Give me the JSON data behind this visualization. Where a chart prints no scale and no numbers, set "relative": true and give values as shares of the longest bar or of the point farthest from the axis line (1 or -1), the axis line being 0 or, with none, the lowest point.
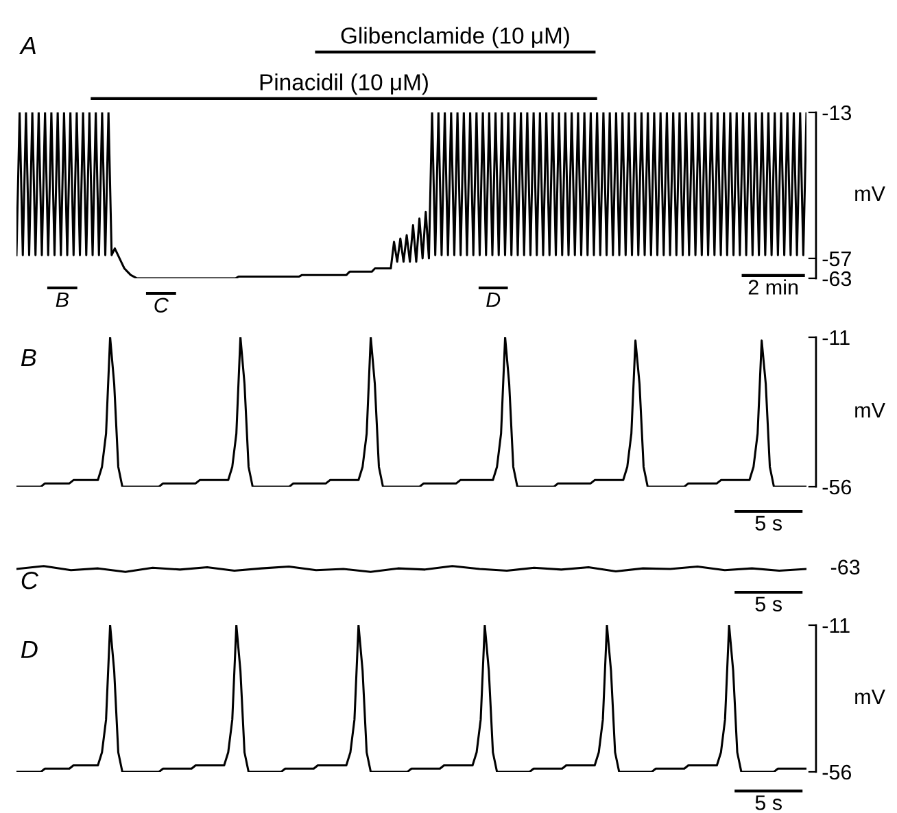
{
  "chart_data": [
    {
      "type": "line",
      "title": "A",
      "ylabel": "mV",
      "ylim": [
        -63,
        -13
      ],
      "yticks": [
        -13,
        -57,
        -63
      ],
      "tick_labels": "y",
      "grid": false,
      "categories": [
        null,
        null,
        null,
        null,
        null,
        null,
        null,
        null,
        null,
        null,
        null,
        null,
        null,
        null,
        null,
        null,
        null,
        null,
        null,
        null,
        null,
        null,
        null,
        null,
        null,
        null,
        null,
        null,
        null,
        null,
        null,
        null,
        null,
        null,
        null,
        null,
        null,
        null,
        null,
        null,
        null,
        null,
        null,
        null,
        null,
        null,
        null,
        null,
        null,
        null,
        null,
        null,
        null,
        null,
        null,
        null,
        null,
        null,
        null,
        null,
        null,
        null,
        null,
        null,
        null,
        null,
        null,
        null,
        null,
        null,
        null,
        null,
        null,
        null,
        null,
        null,
        null,
        null,
        null,
        null,
        null,
        null,
        null,
        null,
        null,
        null,
        null,
        null,
        null,
        null,
        null,
        null,
        null,
        null,
        null,
        null,
        null,
        null,
        null,
        null,
        null,
        null,
        null,
        null,
        null,
        null,
        null,
        null,
        null,
        null,
        null,
        null,
        null,
        null,
        null,
        null,
        null,
        null,
        null,
        null,
        null,
        null,
        null,
        null,
        null,
        null,
        null,
        null,
        null,
        null,
        null,
        null,
        null,
        null,
        null,
        null,
        null,
        null,
        null,
        null,
        null,
        null,
        null,
        null,
        null,
        null,
        null,
        null,
        null,
        null,
        null,
        null,
        null,
        null,
        null,
        null,
        null,
        null,
        null,
        null,
        null,
        null,
        null,
        null,
        null,
        null,
        null,
        null,
        null,
        null,
        null,
        null,
        null,
        null,
        null,
        null,
        null,
        null,
        null,
        null,
        null,
        null,
        null,
        null,
        null,
        null,
        null,
        null,
        null,
        null,
        null,
        null,
        null,
        null,
        null,
        null,
        null,
        null,
        null,
        null,
        null,
        null,
        null,
        null,
        null,
        null,
        null,
        null,
        null,
        null,
        null,
        null,
        null,
        null,
        null,
        null,
        null,
        null,
        null,
        null,
        null,
        null,
        null,
        null,
        null,
        null,
        null,
        null,
        null,
        null,
        null,
        null,
        null,
        null,
        null,
        null,
        null,
        null,
        null,
        null,
        null,
        null,
        null,
        null,
        null,
        null,
        null,
        null,
        null,
        null
      ],
      "series": [
        {
          "color": "#000000",
          "values": [
            -56,
            -13,
            -56,
            -13,
            -56,
            -13,
            -56,
            -13,
            -56,
            -13,
            -56,
            -13,
            -56,
            -13,
            -56,
            -13,
            -56,
            -13,
            -56,
            -13,
            -56,
            -13,
            -56,
            -13,
            -56,
            -13,
            -56,
            -13,
            -56,
            -13,
            -56,
            -54,
            -56,
            -58,
            -60,
            -61,
            -62,
            -62.5,
            -63,
            -63,
            -63,
            -63,
            -63,
            -63,
            -63,
            -63,
            -63,
            -63,
            -63,
            -63,
            -63,
            -63,
            -63,
            -63,
            -63,
            -63,
            -63,
            -63,
            -63,
            -63,
            -63,
            -63,
            -63,
            -63,
            -63,
            -63,
            -63,
            -63,
            -63,
            -63,
            -62.5,
            -62.5,
            -62.5,
            -62.5,
            -62.5,
            -62.5,
            -62.5,
            -62.5,
            -62.5,
            -62.5,
            -62.5,
            -62.5,
            -62.5,
            -62.5,
            -62.5,
            -62.5,
            -62.5,
            -62.5,
            -62.5,
            -62.5,
            -62,
            -62,
            -62,
            -62,
            -62,
            -62,
            -62,
            -62,
            -62,
            -62,
            -62,
            -62,
            -62,
            -62,
            -62,
            -61,
            -61,
            -61,
            -61,
            -61,
            -61,
            -61,
            -61,
            -60,
            -60,
            -60,
            -60,
            -60,
            -60,
            -52,
            -58,
            -51,
            -58,
            -50,
            -58,
            -47,
            -58,
            -45,
            -57,
            -43,
            -57,
            -13,
            -56,
            -13,
            -56,
            -13,
            -56,
            -13,
            -56,
            -13,
            -56,
            -13,
            -56,
            -13,
            -56,
            -13,
            -56,
            -13,
            -56,
            -13,
            -56,
            -13,
            -56,
            -13,
            -56,
            -13,
            -56,
            -13,
            -56,
            -13,
            -56,
            -13,
            -56,
            -13,
            -56,
            -13,
            -56,
            -13,
            -56,
            -13,
            -56,
            -13,
            -56,
            -13,
            -56,
            -13,
            -56,
            -13,
            -56,
            -13,
            -56,
            -13,
            -56,
            -13,
            -56,
            -13,
            -56,
            -13,
            -56,
            -13,
            -56,
            -13,
            -56,
            -13,
            -56,
            -13,
            -56,
            -13,
            -56,
            -13,
            -56,
            -13,
            -56,
            -13,
            -56,
            -13,
            -56,
            -13,
            -56,
            -13,
            -56,
            -13,
            -56,
            -13,
            -56,
            -13,
            -56,
            -13,
            -56,
            -13,
            -56,
            -13,
            -56,
            -13,
            -56,
            -13,
            -56,
            -13,
            -56,
            -13,
            -56,
            -13,
            -56,
            -13,
            -56,
            -13,
            -56,
            -13,
            -56,
            -13,
            -56,
            -13,
            -56,
            -13,
            -56,
            -13,
            -56,
            -13,
            -56,
            -13
          ]
        }
      ],
      "annotations": [
        "Glibenclamide (10 μM)",
        "Pinacidil (10 μM)",
        "B",
        "C",
        "D",
        "2 min"
      ]
    },
    {
      "type": "line",
      "title": "B",
      "ylabel": "mV",
      "ylim": [
        -56,
        -11
      ],
      "yticks": [
        -11,
        -56
      ],
      "tick_labels": "y",
      "grid": false,
      "categories": [
        null,
        null,
        null,
        null,
        null,
        null,
        null,
        null,
        null,
        null,
        null,
        null,
        null,
        null,
        null,
        null,
        null,
        null,
        null,
        null,
        null,
        null,
        null,
        null,
        null,
        null,
        null,
        null,
        null,
        null,
        null,
        null,
        null,
        null,
        null,
        null,
        null,
        null,
        null,
        null,
        null,
        null,
        null,
        null,
        null,
        null,
        null,
        null,
        null,
        null,
        null,
        null,
        null,
        null,
        null,
        null,
        null,
        null,
        null,
        null,
        null,
        null,
        null,
        null,
        null,
        null,
        null,
        null,
        null,
        null,
        null,
        null,
        null,
        null,
        null,
        null,
        null,
        null,
        null,
        null,
        null,
        null,
        null,
        null,
        null,
        null,
        null,
        null,
        null,
        null,
        null,
        null,
        null,
        null,
        null,
        null,
        null,
        null,
        null,
        null,
        null,
        null,
        null,
        null,
        null,
        null,
        null,
        null,
        null,
        null,
        null,
        null,
        null,
        null,
        null,
        null,
        null,
        null,
        null,
        null,
        null,
        null,
        null,
        null,
        null,
        null,
        null,
        null,
        null,
        null,
        null,
        null,
        null,
        null,
        null,
        null,
        null,
        null,
        null,
        null,
        null,
        null,
        null,
        null,
        null,
        null,
        null,
        null,
        null,
        null,
        null,
        null,
        null,
        null,
        null,
        null,
        null,
        null,
        null,
        null,
        null,
        null,
        null,
        null,
        null,
        null,
        null,
        null,
        null,
        null,
        null,
        null,
        null,
        null,
        null,
        null,
        null,
        null,
        null,
        null,
        null,
        null,
        null,
        null,
        null,
        null,
        null,
        null,
        null,
        null,
        null,
        null,
        null,
        null,
        null
      ],
      "series": [
        {
          "color": "#000000",
          "values": [
            -56,
            -56,
            -56,
            -56,
            -56,
            -56,
            -56,
            -55,
            -55,
            -55,
            -55,
            -55,
            -55,
            -55,
            -54,
            -54,
            -54,
            -54,
            -54,
            -54,
            -54,
            -50,
            -40,
            -11,
            -25,
            -50,
            -56,
            -56,
            -56,
            -56,
            -56,
            -56,
            -56,
            -56,
            -56,
            -56,
            -55,
            -55,
            -55,
            -55,
            -55,
            -55,
            -55,
            -55,
            -55,
            -54,
            -54,
            -54,
            -54,
            -54,
            -54,
            -54,
            -54,
            -50,
            -40,
            -11,
            -25,
            -50,
            -56,
            -56,
            -56,
            -56,
            -56,
            -56,
            -56,
            -56,
            -56,
            -56,
            -55,
            -55,
            -55,
            -55,
            -55,
            -55,
            -55,
            -55,
            -55,
            -54,
            -54,
            -54,
            -54,
            -54,
            -54,
            -54,
            -54,
            -50,
            -40,
            -11,
            -25,
            -50,
            -56,
            -56,
            -56,
            -56,
            -56,
            -56,
            -56,
            -56,
            -56,
            -56,
            -55,
            -55,
            -55,
            -55,
            -55,
            -55,
            -55,
            -55,
            -55,
            -54,
            -54,
            -54,
            -54,
            -54,
            -54,
            -54,
            -54,
            -54,
            -50,
            -40,
            -11,
            -25,
            -50,
            -56,
            -56,
            -56,
            -56,
            -56,
            -56,
            -56,
            -56,
            -56,
            -56,
            -55,
            -55,
            -55,
            -55,
            -55,
            -55,
            -55,
            -55,
            -55,
            -54,
            -54,
            -54,
            -54,
            -54,
            -54,
            -54,
            -54,
            -50,
            -40,
            -12,
            -25,
            -50,
            -56,
            -56,
            -56,
            -56,
            -56,
            -56,
            -56,
            -56,
            -56,
            -56,
            -55,
            -55,
            -55,
            -55,
            -55,
            -55,
            -55,
            -55,
            -54,
            -54,
            -54,
            -54,
            -54,
            -54,
            -54,
            -54,
            -50,
            -40,
            -12,
            -25,
            -50,
            -56,
            -56,
            -56,
            -56,
            -56,
            -56,
            -56,
            -56,
            -56
          ]
        }
      ],
      "annotations": [
        "5 s"
      ]
    },
    {
      "type": "line",
      "title": "C",
      "relative": true,
      "tick_labels": false,
      "grid": false,
      "categories": [
        null,
        null,
        null,
        null,
        null,
        null,
        null,
        null,
        null,
        null,
        null,
        null,
        null,
        null,
        null,
        null,
        null,
        null,
        null,
        null,
        null,
        null,
        null,
        null,
        null,
        null,
        null,
        null,
        null,
        null
      ],
      "series": [
        {
          "color": "#000000",
          "values": [
            0.5,
            1,
            0.3,
            0.6,
            0,
            0.7,
            0.4,
            0.8,
            0.2,
            0.6,
            0.9,
            0.3,
            0.5,
            0,
            0.6,
            0.4,
            1,
            0.5,
            0.2,
            0.7,
            0.4,
            0.8,
            0.1,
            0.6,
            0.5,
            0.9,
            0.3,
            0.6,
            0.2,
            0.5
          ]
        }
      ],
      "annotations": [
        "-63",
        "5 s"
      ]
    },
    {
      "type": "line",
      "title": "D",
      "ylabel": "mV",
      "ylim": [
        -56,
        -11
      ],
      "yticks": [
        -11,
        -56
      ],
      "tick_labels": "y",
      "grid": false,
      "categories": [
        null,
        null,
        null,
        null,
        null,
        null,
        null,
        null,
        null,
        null,
        null,
        null,
        null,
        null,
        null,
        null,
        null,
        null,
        null,
        null,
        null,
        null,
        null,
        null,
        null,
        null,
        null,
        null,
        null,
        null,
        null,
        null,
        null,
        null,
        null,
        null,
        null,
        null,
        null,
        null,
        null,
        null,
        null,
        null,
        null,
        null,
        null,
        null,
        null,
        null,
        null,
        null,
        null,
        null,
        null,
        null,
        null,
        null,
        null,
        null,
        null,
        null,
        null,
        null,
        null,
        null,
        null,
        null,
        null,
        null,
        null,
        null,
        null,
        null,
        null,
        null,
        null,
        null,
        null,
        null,
        null,
        null,
        null,
        null,
        null,
        null,
        null,
        null,
        null,
        null,
        null,
        null,
        null,
        null,
        null,
        null,
        null,
        null,
        null,
        null,
        null,
        null,
        null,
        null,
        null,
        null,
        null,
        null,
        null,
        null,
        null,
        null,
        null,
        null,
        null,
        null,
        null,
        null,
        null,
        null,
        null,
        null,
        null,
        null,
        null,
        null,
        null,
        null,
        null,
        null,
        null,
        null,
        null,
        null,
        null,
        null,
        null,
        null,
        null,
        null,
        null,
        null,
        null,
        null,
        null,
        null,
        null,
        null,
        null,
        null,
        null,
        null,
        null,
        null,
        null,
        null,
        null,
        null,
        null,
        null,
        null,
        null,
        null,
        null,
        null,
        null,
        null,
        null,
        null,
        null,
        null,
        null,
        null,
        null,
        null,
        null,
        null,
        null,
        null,
        null,
        null,
        null,
        null,
        null,
        null,
        null,
        null,
        null,
        null,
        null,
        null,
        null,
        null,
        null,
        null
      ],
      "series": [
        {
          "color": "#000000",
          "values": [
            -56,
            -56,
            -56,
            -56,
            -56,
            -56,
            -56,
            -55,
            -55,
            -55,
            -55,
            -55,
            -55,
            -55,
            -54,
            -54,
            -54,
            -54,
            -54,
            -54,
            -54,
            -50,
            -40,
            -11,
            -25,
            -50,
            -56,
            -56,
            -56,
            -56,
            -56,
            -56,
            -56,
            -56,
            -56,
            -56,
            -55,
            -55,
            -55,
            -55,
            -55,
            -55,
            -55,
            -55,
            -54,
            -54,
            -54,
            -54,
            -54,
            -54,
            -54,
            -54,
            -50,
            -40,
            -11,
            -25,
            -50,
            -56,
            -56,
            -56,
            -56,
            -56,
            -56,
            -56,
            -56,
            -56,
            -55,
            -55,
            -55,
            -55,
            -55,
            -55,
            -55,
            -55,
            -54,
            -54,
            -54,
            -54,
            -54,
            -54,
            -54,
            -54,
            -50,
            -40,
            -11,
            -25,
            -50,
            -56,
            -56,
            -56,
            -56,
            -56,
            -56,
            -56,
            -56,
            -56,
            -56,
            -55,
            -55,
            -55,
            -55,
            -55,
            -55,
            -55,
            -55,
            -54,
            -54,
            -54,
            -54,
            -54,
            -54,
            -54,
            -54,
            -50,
            -40,
            -11,
            -25,
            -50,
            -56,
            -56,
            -56,
            -56,
            -56,
            -56,
            -56,
            -56,
            -56,
            -55,
            -55,
            -55,
            -55,
            -55,
            -55,
            -55,
            -55,
            -54,
            -54,
            -54,
            -54,
            -54,
            -54,
            -54,
            -54,
            -50,
            -40,
            -11,
            -25,
            -50,
            -56,
            -56,
            -56,
            -56,
            -56,
            -56,
            -56,
            -56,
            -56,
            -55,
            -55,
            -55,
            -55,
            -55,
            -55,
            -55,
            -55,
            -54,
            -54,
            -54,
            -54,
            -54,
            -54,
            -54,
            -54,
            -50,
            -40,
            -11,
            -25,
            -50,
            -56,
            -56,
            -56,
            -56,
            -56,
            -56,
            -56,
            -56,
            -56,
            -55,
            -55,
            -55,
            -55,
            -55,
            -55,
            -55,
            -55
          ]
        }
      ],
      "annotations": [
        "5 s"
      ]
    }
  ]
}
